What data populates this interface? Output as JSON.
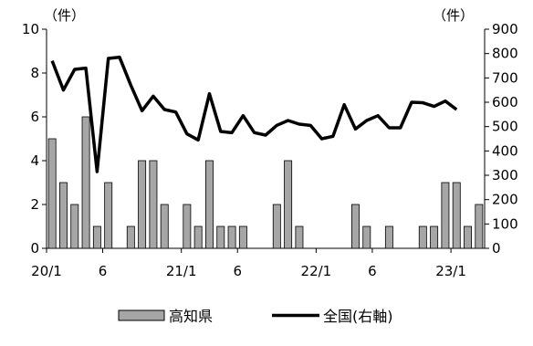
{
  "chart_data": {
    "type": "bar+line",
    "title": "",
    "x_tick_labels": [
      "20/1",
      "6",
      "21/1",
      "6",
      "22/1",
      "6",
      "23/1"
    ],
    "x_tick_months": [
      "2020-01",
      "2020-06",
      "2021-01",
      "2021-06",
      "2022-01",
      "2022-06",
      "2023-01"
    ],
    "y_left": {
      "unit": "（件）",
      "ylim": [
        0,
        10
      ],
      "ticks": [
        0,
        2,
        4,
        6,
        8,
        10
      ]
    },
    "y_right": {
      "unit": "（件）",
      "ylim": [
        0,
        900
      ],
      "ticks": [
        0,
        100,
        200,
        300,
        400,
        500,
        600,
        700,
        800,
        900
      ]
    },
    "legend": {
      "position": "bottom"
    },
    "series": [
      {
        "name": "高知県",
        "kind": "bar",
        "axis": "left",
        "color": "#a6a6a6",
        "values": [
          5,
          3,
          2,
          6,
          1,
          3,
          0,
          1,
          4,
          4,
          2,
          0,
          2,
          1,
          4,
          1,
          1,
          1,
          0,
          0,
          2,
          4,
          1,
          0,
          0,
          0,
          0,
          2,
          1,
          0,
          1,
          0,
          0,
          1,
          1,
          3,
          3,
          1,
          2
        ]
      },
      {
        "name": "全国(右軸)",
        "kind": "line",
        "axis": "right",
        "color": "#000000",
        "values": [
          770,
          650,
          735,
          740,
          315,
          780,
          785,
          670,
          565,
          625,
          570,
          560,
          470,
          445,
          635,
          480,
          475,
          545,
          475,
          465,
          505,
          525,
          510,
          505,
          450,
          460,
          590,
          490,
          525,
          545,
          495,
          495,
          600,
          598,
          583,
          605,
          570
        ]
      }
    ]
  }
}
